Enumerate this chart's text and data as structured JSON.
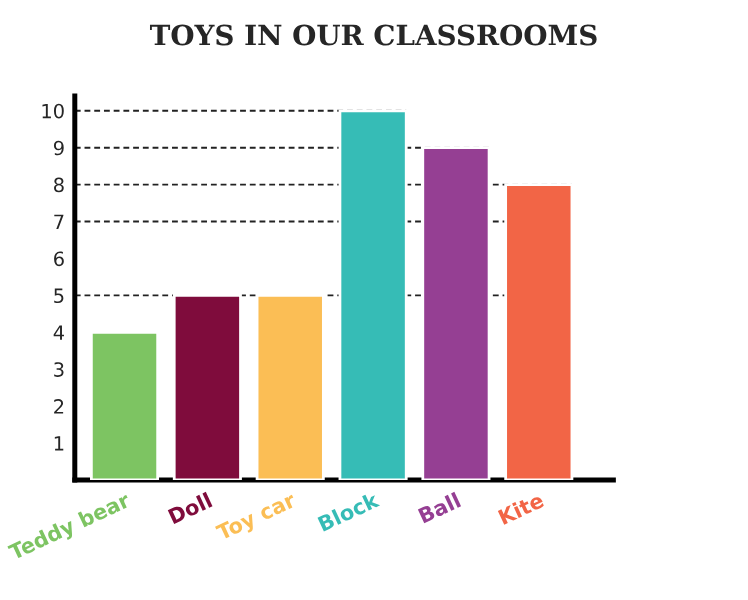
{
  "chart_data": {
    "type": "bar",
    "title": "TOYS IN OUR CLASSROOMS",
    "categories": [
      "Teddy bear",
      "Doll",
      "Toy car",
      "Block",
      "Ball",
      "Kite"
    ],
    "values": [
      4,
      5,
      5,
      10,
      9,
      8
    ],
    "colors": [
      "#7dc462",
      "#7f0c3c",
      "#fbbe55",
      "#36bcb6",
      "#953f93",
      "#f26546"
    ],
    "ylim": [
      0,
      10.4
    ],
    "yticks": [
      1,
      2,
      3,
      4,
      5,
      6,
      7,
      8,
      9,
      10
    ],
    "grid": false,
    "ref_lines": [
      {
        "axis": "y",
        "value": 10,
        "line_style": "dashed"
      },
      {
        "axis": "y",
        "value": 9,
        "line_style": "dashed"
      },
      {
        "axis": "y",
        "value": 8,
        "line_style": "dashed"
      },
      {
        "axis": "y",
        "value": 7,
        "line_style": "dashed"
      },
      {
        "axis": "y",
        "value": 5,
        "line_style": "dashed"
      }
    ]
  }
}
